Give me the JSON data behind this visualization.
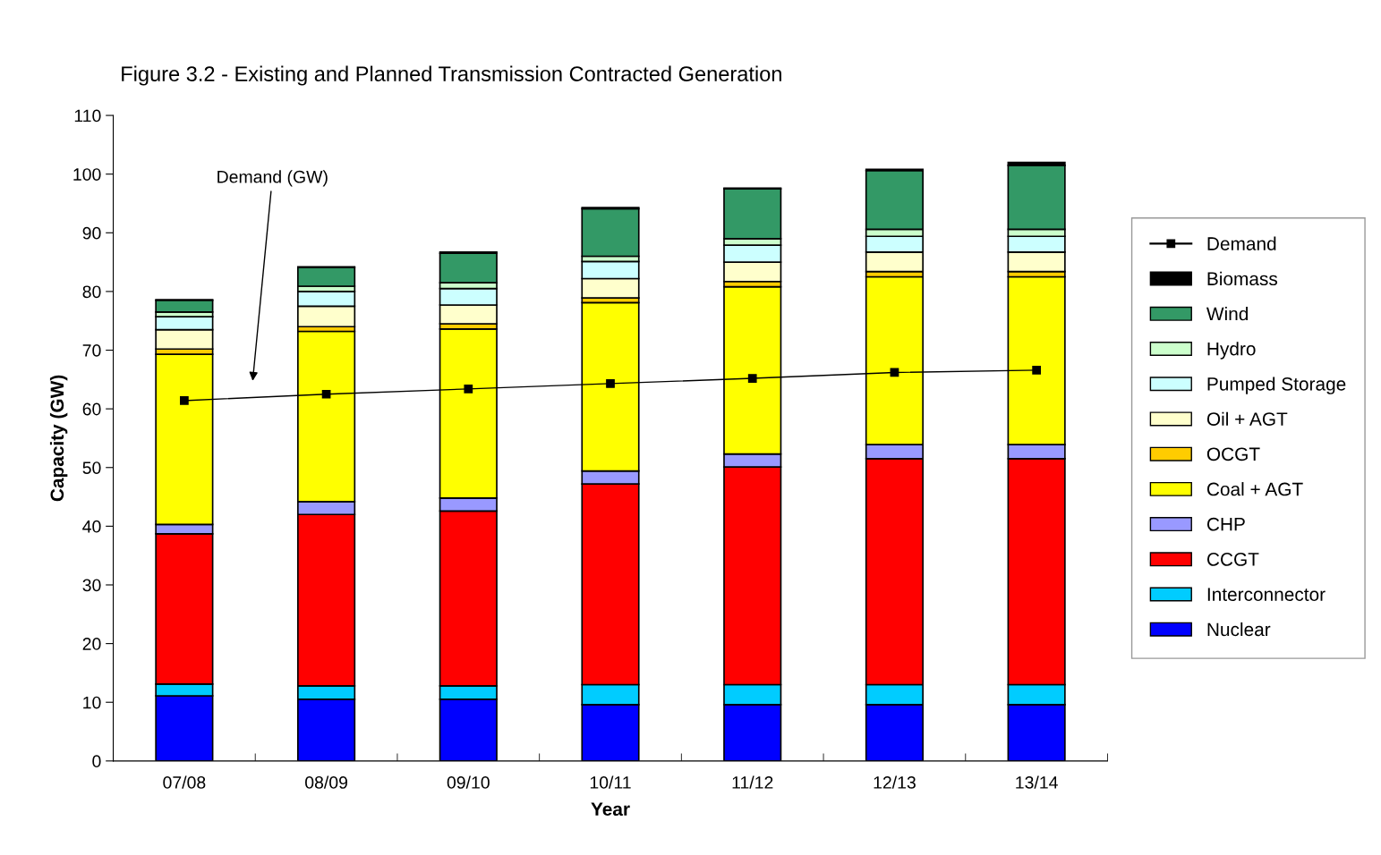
{
  "chart_data": {
    "type": "bar",
    "stacked": true,
    "title": "Figure 3.2 - Existing and Planned Transmission Contracted Generation",
    "xlabel": "Year",
    "ylabel": "Capacity (GW)",
    "categories": [
      "07/08",
      "08/09",
      "09/10",
      "10/11",
      "11/12",
      "12/13",
      "13/14"
    ],
    "series": [
      {
        "name": "Nuclear",
        "color": "#0000ff",
        "values": [
          11.1,
          10.5,
          10.5,
          9.6,
          9.6,
          9.6,
          9.6
        ]
      },
      {
        "name": "Interconnector",
        "color": "#00ccff",
        "values": [
          2.0,
          2.3,
          2.3,
          3.4,
          3.4,
          3.4,
          3.4
        ]
      },
      {
        "name": "CCGT",
        "color": "#ff0000",
        "values": [
          25.6,
          29.2,
          29.8,
          34.2,
          37.1,
          38.5,
          38.5
        ]
      },
      {
        "name": "CHP",
        "color": "#9999ff",
        "values": [
          1.6,
          2.2,
          2.2,
          2.2,
          2.2,
          2.4,
          2.4
        ]
      },
      {
        "name": "Coal + AGT",
        "color": "#ffff00",
        "values": [
          29.0,
          29.0,
          28.8,
          28.7,
          28.5,
          28.6,
          28.6
        ]
      },
      {
        "name": "OCGT",
        "color": "#ffcc00",
        "values": [
          0.9,
          0.8,
          0.9,
          0.8,
          0.9,
          0.9,
          0.9
        ]
      },
      {
        "name": "Oil + AGT",
        "color": "#ffffcc",
        "values": [
          3.3,
          3.5,
          3.2,
          3.3,
          3.3,
          3.3,
          3.3
        ]
      },
      {
        "name": "Pumped Storage",
        "color": "#ccffff",
        "values": [
          2.2,
          2.5,
          2.8,
          2.9,
          2.9,
          2.7,
          2.7
        ]
      },
      {
        "name": "Hydro",
        "color": "#ccffcc",
        "values": [
          0.8,
          0.9,
          1.0,
          0.9,
          1.1,
          1.2,
          1.2
        ]
      },
      {
        "name": "Wind",
        "color": "#339966",
        "values": [
          2.0,
          3.2,
          5.0,
          8.1,
          8.5,
          10.0,
          10.9
        ]
      },
      {
        "name": "Biomass",
        "color": "#000000",
        "values": [
          0.1,
          0.1,
          0.2,
          0.2,
          0.1,
          0.2,
          0.5
        ]
      },
      {
        "name": "Demand",
        "type": "line",
        "color": "#000000",
        "values": [
          61.4,
          62.5,
          63.4,
          64.3,
          65.2,
          66.2,
          66.6
        ]
      }
    ],
    "marker": "square",
    "ylim": [
      0,
      110
    ],
    "yticks": [
      0,
      10,
      20,
      30,
      40,
      50,
      60,
      70,
      80,
      90,
      100,
      110
    ],
    "grid": false,
    "legend": "right",
    "annotations": [
      "Demand (GW)"
    ]
  }
}
